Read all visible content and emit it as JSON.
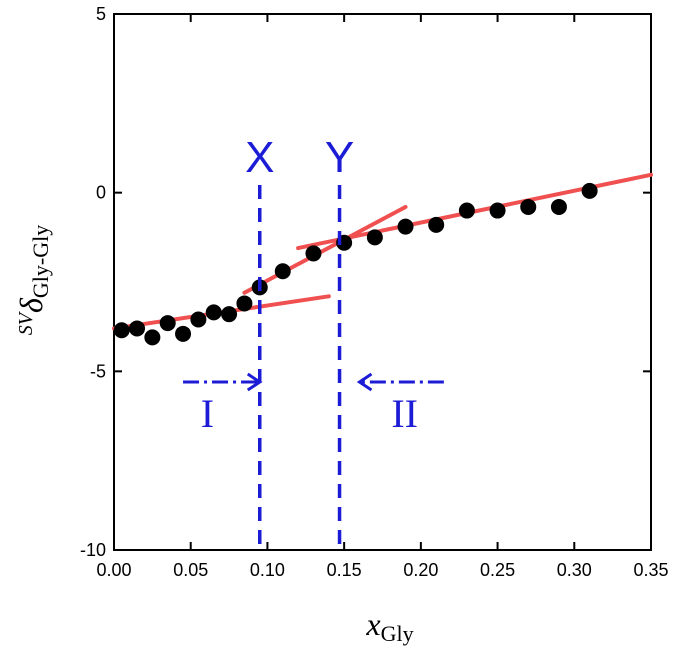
{
  "chart_data": {
    "type": "scatter",
    "title": "",
    "xlabel": {
      "main": "x",
      "sub": "Gly"
    },
    "ylabel": {
      "sup": "SV",
      "main": "δ",
      "sub": "Gly-Gly"
    },
    "xlim": [
      0,
      0.35
    ],
    "ylim": [
      -10,
      5
    ],
    "xticks": [
      "0.00",
      "0.05",
      "0.10",
      "0.15",
      "0.20",
      "0.25",
      "0.30",
      "0.35"
    ],
    "xtick_values": [
      0,
      0.05,
      0.1,
      0.15,
      0.2,
      0.25,
      0.3,
      0.35
    ],
    "yticks": [
      "5",
      "0",
      "-5",
      "-10"
    ],
    "ytick_values": [
      5,
      0,
      -5,
      -10
    ],
    "grid": false,
    "series": [
      {
        "points": [
          [
            0.005,
            -3.85
          ],
          [
            0.015,
            -3.8
          ],
          [
            0.025,
            -4.05
          ],
          [
            0.035,
            -3.65
          ],
          [
            0.045,
            -3.95
          ],
          [
            0.055,
            -3.55
          ],
          [
            0.065,
            -3.35
          ],
          [
            0.075,
            -3.4
          ],
          [
            0.085,
            -3.1
          ],
          [
            0.095,
            -2.65
          ],
          [
            0.11,
            -2.2
          ],
          [
            0.13,
            -1.7
          ],
          [
            0.15,
            -1.4
          ],
          [
            0.17,
            -1.25
          ],
          [
            0.19,
            -0.95
          ],
          [
            0.21,
            -0.9
          ],
          [
            0.23,
            -0.5
          ],
          [
            0.25,
            -0.5
          ],
          [
            0.27,
            -0.4
          ],
          [
            0.29,
            -0.4
          ],
          [
            0.31,
            0.05
          ]
        ],
        "color": "#000000"
      }
    ],
    "fit_lines": [
      {
        "x": [
          0.0,
          0.14
        ],
        "y": [
          -3.8,
          -2.9
        ],
        "color": "#f05050"
      },
      {
        "x": [
          0.085,
          0.19
        ],
        "y": [
          -2.8,
          -0.4
        ],
        "color": "#f05050"
      },
      {
        "x": [
          0.12,
          0.35
        ],
        "y": [
          -1.55,
          0.5
        ],
        "color": "#f05050"
      }
    ],
    "annotations": {
      "vlines": [
        {
          "x": 0.095,
          "label": "X"
        },
        {
          "x": 0.147,
          "label": "Y"
        }
      ],
      "arrows": [
        {
          "from": 0.045,
          "to": 0.095,
          "y": -5.3,
          "label": "I"
        },
        {
          "from": 0.215,
          "to": 0.16,
          "y": -5.3,
          "label": "II"
        }
      ],
      "color": "#1c1cd6"
    }
  }
}
